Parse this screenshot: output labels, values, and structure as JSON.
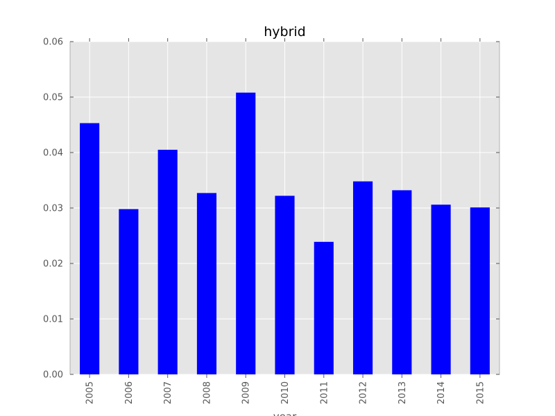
{
  "chart_data": {
    "type": "bar",
    "title": "hybrid",
    "xlabel": "year",
    "ylabel": "",
    "categories": [
      "2005",
      "2006",
      "2007",
      "2008",
      "2009",
      "2010",
      "2011",
      "2012",
      "2013",
      "2014",
      "2015"
    ],
    "values": [
      0.0453,
      0.0298,
      0.0405,
      0.0327,
      0.0508,
      0.0322,
      0.0239,
      0.0348,
      0.0332,
      0.0306,
      0.0301
    ],
    "ylim": [
      0,
      0.06
    ],
    "yticks": [
      "0.00",
      "0.01",
      "0.02",
      "0.03",
      "0.04",
      "0.05",
      "0.06"
    ],
    "grid": true,
    "bar_color": "#0000ff",
    "plot_background": "#e5e5e5",
    "grid_color": "#ffffff"
  }
}
